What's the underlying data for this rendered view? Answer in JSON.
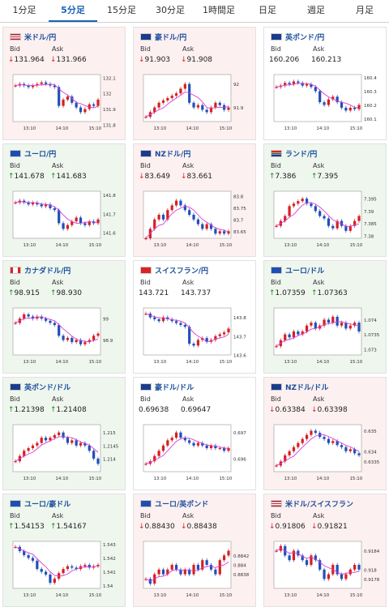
{
  "tabs": [
    "1分足",
    "5分足",
    "15分足",
    "30分足",
    "1時間足",
    "日足",
    "週足",
    "月足"
  ],
  "active_tab": 1,
  "bid_label": "Bid",
  "ask_label": "Ask",
  "pairs": [
    {
      "name": "米ドル/円",
      "dir": "down",
      "bid": "131.964",
      "ask": "131.966",
      "flag": "us-jp",
      "yticks": [
        "132.1",
        "132",
        "131.9",
        "131.8"
      ],
      "xticks": [
        "13:10",
        "14:10",
        "15:10"
      ]
    },
    {
      "name": "豪ドル/円",
      "dir": "down",
      "bid": "91.903",
      "ask": "91.908",
      "flag": "au-jp",
      "yticks": [
        "92",
        "91.9"
      ],
      "xticks": [
        "13:10",
        "14:10",
        "15:10"
      ]
    },
    {
      "name": "英ポンド/円",
      "dir": "flat",
      "bid": "160.206",
      "ask": "160.213",
      "flag": "gb-jp",
      "yticks": [
        "160.4",
        "160.3",
        "160.2",
        "160.1"
      ],
      "xticks": [
        "13:10",
        "14:10",
        "15:10"
      ]
    },
    {
      "name": "ユーロ/円",
      "dir": "up",
      "bid": "141.678",
      "ask": "141.683",
      "flag": "eu-jp",
      "yticks": [
        "141.8",
        "141.7",
        "141.6"
      ],
      "xticks": [
        "13:10",
        "14:10",
        "15:10"
      ]
    },
    {
      "name": "NZドル/円",
      "dir": "down",
      "bid": "83.649",
      "ask": "83.661",
      "flag": "nz-jp",
      "yticks": [
        "83.8",
        "83.75",
        "83.7",
        "83.65"
      ],
      "xticks": [
        "13:10",
        "14:10",
        "15:10"
      ]
    },
    {
      "name": "ランド/円",
      "dir": "up",
      "bid": "7.386",
      "ask": "7.395",
      "flag": "za-jp",
      "yticks": [
        "7.395",
        "7.39",
        "7.385",
        "7.38"
      ],
      "xticks": [
        "13:10",
        "14:10",
        "15:10"
      ]
    },
    {
      "name": "カナダドル/円",
      "dir": "up",
      "bid": "98.915",
      "ask": "98.930",
      "flag": "ca-jp",
      "yticks": [
        "99",
        "98.9"
      ],
      "xticks": [
        "13:10",
        "14:10",
        "15:10"
      ]
    },
    {
      "name": "スイスフラン/円",
      "dir": "flat",
      "bid": "143.721",
      "ask": "143.737",
      "flag": "ch-jp",
      "yticks": [
        "143.8",
        "143.7",
        "143.6"
      ],
      "xticks": [
        "13:10",
        "14:10",
        "15:10"
      ]
    },
    {
      "name": "ユーロ/ドル",
      "dir": "up",
      "bid": "1.07359",
      "ask": "1.07363",
      "flag": "eu-us",
      "yticks": [
        "1.074",
        "1.0735",
        "1.073"
      ],
      "xticks": [
        "13:10",
        "14:10",
        "15:10"
      ]
    },
    {
      "name": "英ポンド/ドル",
      "dir": "up",
      "bid": "1.21398",
      "ask": "1.21408",
      "flag": "gb-us",
      "yticks": [
        "1.215",
        "1.2145",
        "1.214"
      ],
      "xticks": [
        "13:10",
        "14:10",
        "15:10"
      ]
    },
    {
      "name": "豪ドル/ドル",
      "dir": "flat",
      "bid": "0.69638",
      "ask": "0.69647",
      "flag": "au-us",
      "yticks": [
        "0.697",
        "0.696"
      ],
      "xticks": [
        "13:10",
        "14:10",
        "15:10"
      ]
    },
    {
      "name": "NZドル/ドル",
      "dir": "down",
      "bid": "0.63384",
      "ask": "0.63398",
      "flag": "nz-us",
      "yticks": [
        "0.635",
        "0.634",
        "0.6335"
      ],
      "xticks": [
        "13:10",
        "14:10",
        "15:10"
      ]
    },
    {
      "name": "ユーロ/豪ドル",
      "dir": "up",
      "bid": "1.54153",
      "ask": "1.54167",
      "flag": "eu-au",
      "yticks": [
        "1.543",
        "1.542",
        "1.541",
        "1.54"
      ],
      "xticks": [
        "13:10",
        "14:10",
        "15:10"
      ]
    },
    {
      "name": "ユーロ/英ポンド",
      "dir": "down",
      "bid": "0.88430",
      "ask": "0.88438",
      "flag": "eu-gb",
      "yticks": [
        "0.8842",
        "0.884",
        "0.8838"
      ],
      "xticks": [
        "13:10",
        "14:10",
        "15:10"
      ]
    },
    {
      "name": "米ドル/スイスフラン",
      "dir": "down",
      "bid": "0.91806",
      "ask": "0.91821",
      "flag": "us-ch",
      "yticks": [
        "0.9184",
        "0.918",
        "0.9178"
      ],
      "xticks": [
        "13:10",
        "14:10",
        "15:10"
      ]
    }
  ],
  "chart_data": [
    {
      "type": "line",
      "title": "米ドル/円",
      "series": [
        {
          "values": [
            132.05,
            132.06,
            132.05,
            132.04,
            132.05,
            132.06,
            132.07,
            132.06,
            132.05,
            132.04,
            131.92,
            131.96,
            131.98,
            131.94,
            131.91,
            131.88,
            131.9,
            131.93,
            131.92,
            131.96
          ]
        }
      ],
      "ylim": [
        131.82,
        132.12
      ]
    },
    {
      "type": "line",
      "title": "豪ドル/円",
      "series": [
        {
          "values": [
            91.86,
            91.88,
            91.9,
            91.92,
            91.93,
            91.94,
            91.95,
            91.96,
            91.98,
            92.0,
            91.92,
            91.9,
            91.91,
            91.89,
            91.88,
            91.9,
            91.92,
            91.91,
            91.89,
            91.9
          ]
        }
      ],
      "ylim": [
        91.84,
        92.04
      ]
    },
    {
      "type": "line",
      "title": "英ポンド/円",
      "series": [
        {
          "values": [
            160.33,
            160.34,
            160.36,
            160.35,
            160.37,
            160.36,
            160.34,
            160.35,
            160.33,
            160.3,
            160.22,
            160.2,
            160.24,
            160.26,
            160.22,
            160.18,
            160.16,
            160.18,
            160.17,
            160.2
          ]
        }
      ],
      "ylim": [
        160.08,
        160.42
      ]
    },
    {
      "type": "line",
      "title": "ユーロ/円",
      "series": [
        {
          "values": [
            141.76,
            141.77,
            141.76,
            141.75,
            141.76,
            141.75,
            141.74,
            141.75,
            141.73,
            141.72,
            141.65,
            141.62,
            141.64,
            141.66,
            141.68,
            141.65,
            141.64,
            141.66,
            141.65,
            141.67
          ]
        }
      ],
      "ylim": [
        141.57,
        141.82
      ]
    },
    {
      "type": "line",
      "title": "NZドル/円",
      "series": [
        {
          "values": [
            83.62,
            83.66,
            83.7,
            83.72,
            83.7,
            83.74,
            83.76,
            83.78,
            83.76,
            83.74,
            83.72,
            83.7,
            83.68,
            83.66,
            83.68,
            83.66,
            83.64,
            83.65,
            83.64,
            83.65
          ]
        }
      ],
      "ylim": [
        83.62,
        83.82
      ]
    },
    {
      "type": "line",
      "title": "ランド/円",
      "series": [
        {
          "values": [
            7.384,
            7.386,
            7.388,
            7.392,
            7.393,
            7.394,
            7.395,
            7.393,
            7.392,
            7.39,
            7.388,
            7.387,
            7.384,
            7.383,
            7.386,
            7.384,
            7.382,
            7.384,
            7.386,
            7.388
          ]
        }
      ],
      "ylim": [
        7.379,
        7.398
      ]
    },
    {
      "type": "line",
      "title": "カナダドル/円",
      "series": [
        {
          "values": [
            98.98,
            99.0,
            99.02,
            99.01,
            99.0,
            99.01,
            99.0,
            98.99,
            98.98,
            98.97,
            98.92,
            98.9,
            98.91,
            98.89,
            98.9,
            98.88,
            98.89,
            98.9,
            98.92,
            98.93
          ]
        }
      ],
      "ylim": [
        98.83,
        99.05
      ]
    },
    {
      "type": "line",
      "title": "スイスフラン/円",
      "series": [
        {
          "values": [
            143.82,
            143.8,
            143.79,
            143.78,
            143.8,
            143.79,
            143.78,
            143.77,
            143.76,
            143.75,
            143.66,
            143.65,
            143.68,
            143.69,
            143.67,
            143.68,
            143.7,
            143.71,
            143.72,
            143.74
          ]
        }
      ],
      "ylim": [
        143.6,
        143.85
      ]
    },
    {
      "type": "line",
      "title": "ユーロ/ドル",
      "series": [
        {
          "values": [
            1.0731,
            1.0733,
            1.0735,
            1.0734,
            1.0736,
            1.0735,
            1.0736,
            1.0738,
            1.0739,
            1.0737,
            1.0738,
            1.074,
            1.0739,
            1.0741,
            1.0738,
            1.0739,
            1.0737,
            1.0738,
            1.0739,
            1.0736
          ]
        }
      ],
      "ylim": [
        1.0728,
        1.0744
      ]
    },
    {
      "type": "line",
      "title": "英ポンド/ドル",
      "series": [
        {
          "values": [
            1.2139,
            1.2141,
            1.2143,
            1.2144,
            1.2145,
            1.2146,
            1.2148,
            1.2147,
            1.2148,
            1.2149,
            1.215,
            1.2148,
            1.2146,
            1.2147,
            1.2145,
            1.2146,
            1.2145,
            1.2143,
            1.214,
            1.2138
          ]
        }
      ],
      "ylim": [
        1.2135,
        1.2153
      ]
    },
    {
      "type": "line",
      "title": "豪ドル/ドル",
      "series": [
        {
          "values": [
            0.6958,
            0.6959,
            0.6961,
            0.6963,
            0.6965,
            0.6967,
            0.6968,
            0.697,
            0.6968,
            0.6967,
            0.6966,
            0.6965,
            0.6966,
            0.6965,
            0.6964,
            0.6965,
            0.6964,
            0.6964,
            0.6963,
            0.6964
          ]
        }
      ],
      "ylim": [
        0.6955,
        0.6973
      ]
    },
    {
      "type": "line",
      "title": "NZドル/ドル",
      "series": [
        {
          "values": [
            0.6333,
            0.6335,
            0.6338,
            0.634,
            0.6342,
            0.6344,
            0.6346,
            0.6348,
            0.635,
            0.6349,
            0.6347,
            0.6346,
            0.6344,
            0.6345,
            0.6343,
            0.6342,
            0.634,
            0.6341,
            0.6339,
            0.6338
          ]
        }
      ],
      "ylim": [
        0.633,
        0.6353
      ]
    },
    {
      "type": "line",
      "title": "ユーロ/豪ドル",
      "series": [
        {
          "values": [
            1.5428,
            1.5425,
            1.5422,
            1.542,
            1.5418,
            1.5412,
            1.541,
            1.5408,
            1.5402,
            1.5405,
            1.5409,
            1.5412,
            1.5414,
            1.5413,
            1.5412,
            1.5414,
            1.5415,
            1.5413,
            1.5414,
            1.5415
          ]
        }
      ],
      "ylim": [
        1.5398,
        1.5432
      ]
    },
    {
      "type": "line",
      "title": "ユーロ/英ポンド",
      "series": [
        {
          "values": [
            0.8837,
            0.8836,
            0.8838,
            0.8839,
            0.8838,
            0.8839,
            0.884,
            0.8839,
            0.8838,
            0.8839,
            0.8838,
            0.884,
            0.8839,
            0.8841,
            0.884,
            0.8839,
            0.8838,
            0.8841,
            0.8842,
            0.8843
          ]
        }
      ],
      "ylim": [
        0.8835,
        0.8845
      ]
    },
    {
      "type": "line",
      "title": "米ドル/スイスフラン",
      "series": [
        {
          "values": [
            0.9184,
            0.9185,
            0.9183,
            0.9182,
            0.9184,
            0.9183,
            0.9182,
            0.9181,
            0.9183,
            0.9182,
            0.918,
            0.9178,
            0.9179,
            0.9181,
            0.9179,
            0.9178,
            0.9179,
            0.918,
            0.9181,
            0.918
          ]
        }
      ],
      "ylim": [
        0.9176,
        0.9186
      ]
    }
  ],
  "colors": {
    "up": "#1a8a1a",
    "down": "#d22222",
    "candle_up": "#d42020",
    "candle_down": "#1f4fb8",
    "ma": "#d63dd6"
  }
}
